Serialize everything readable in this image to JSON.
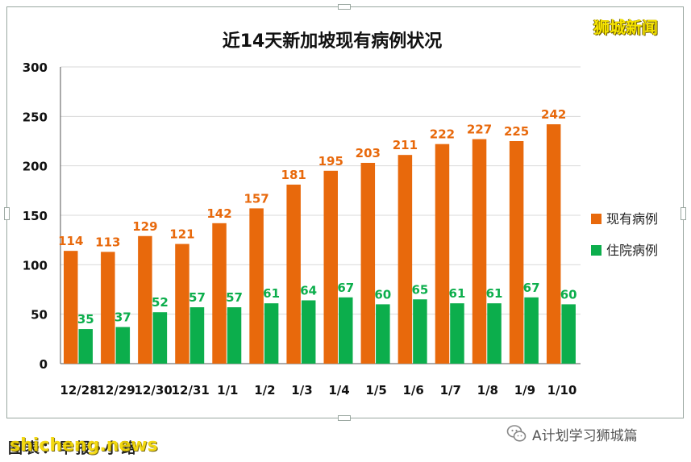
{
  "watermark_top": "狮城新闻",
  "source_credit": "图表：早报•小路",
  "site_watermark": "shicheng.news",
  "account_name": "A计划学习狮城篇",
  "colors": {
    "existing": "#e8690c",
    "hospitalized": "#0cae4c",
    "grid": "#d9d9d9",
    "axis": "#555555"
  },
  "chart_data": {
    "type": "bar",
    "title": "近14天新加坡现有病例状况",
    "categories": [
      "12/28",
      "12/29",
      "12/30",
      "12/31",
      "1/1",
      "1/2",
      "1/3",
      "1/4",
      "1/5",
      "1/6",
      "1/7",
      "1/8",
      "1/9",
      "1/10"
    ],
    "series": [
      {
        "name": "现有病例",
        "values": [
          114,
          113,
          129,
          121,
          142,
          157,
          181,
          195,
          203,
          211,
          222,
          227,
          225,
          242
        ]
      },
      {
        "name": "住院病例",
        "values": [
          35,
          37,
          52,
          57,
          57,
          61,
          64,
          67,
          60,
          65,
          61,
          61,
          67,
          60
        ]
      }
    ],
    "ylim": [
      0,
      300
    ],
    "yticks": [
      0,
      50,
      100,
      150,
      200,
      250,
      300
    ],
    "grid": true,
    "legend": "right"
  }
}
